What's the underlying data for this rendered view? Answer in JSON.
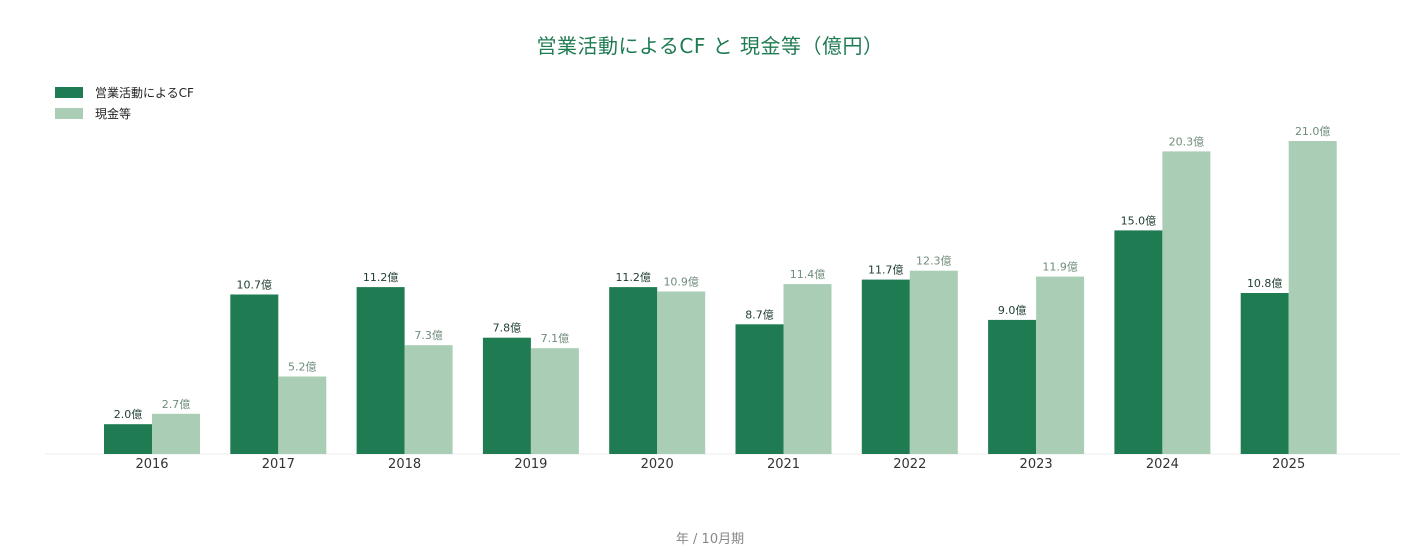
{
  "chart_data": {
    "type": "bar",
    "title": "営業活動によるCF と 現金等（億円）",
    "xlabel": "年 / 10月期",
    "ylabel": "",
    "unit_suffix": "億",
    "categories": [
      "2016",
      "2017",
      "2018",
      "2019",
      "2020",
      "2021",
      "2022",
      "2023",
      "2024",
      "2025"
    ],
    "series": [
      {
        "name": "営業活動によるCF",
        "color": "#1e7b52",
        "label_color": "#1f3d30",
        "values": [
          2.0,
          10.7,
          11.2,
          7.8,
          11.2,
          8.7,
          11.7,
          9.0,
          15.0,
          10.8
        ]
      },
      {
        "name": "現金等",
        "color": "#a9cdb5",
        "label_color": "#6f8c7b",
        "values": [
          2.7,
          5.2,
          7.3,
          7.1,
          10.9,
          11.4,
          12.3,
          11.9,
          20.3,
          21.0
        ]
      }
    ],
    "ylim": [
      0,
      21.0
    ],
    "grid": false,
    "legend_position": "top-left"
  }
}
